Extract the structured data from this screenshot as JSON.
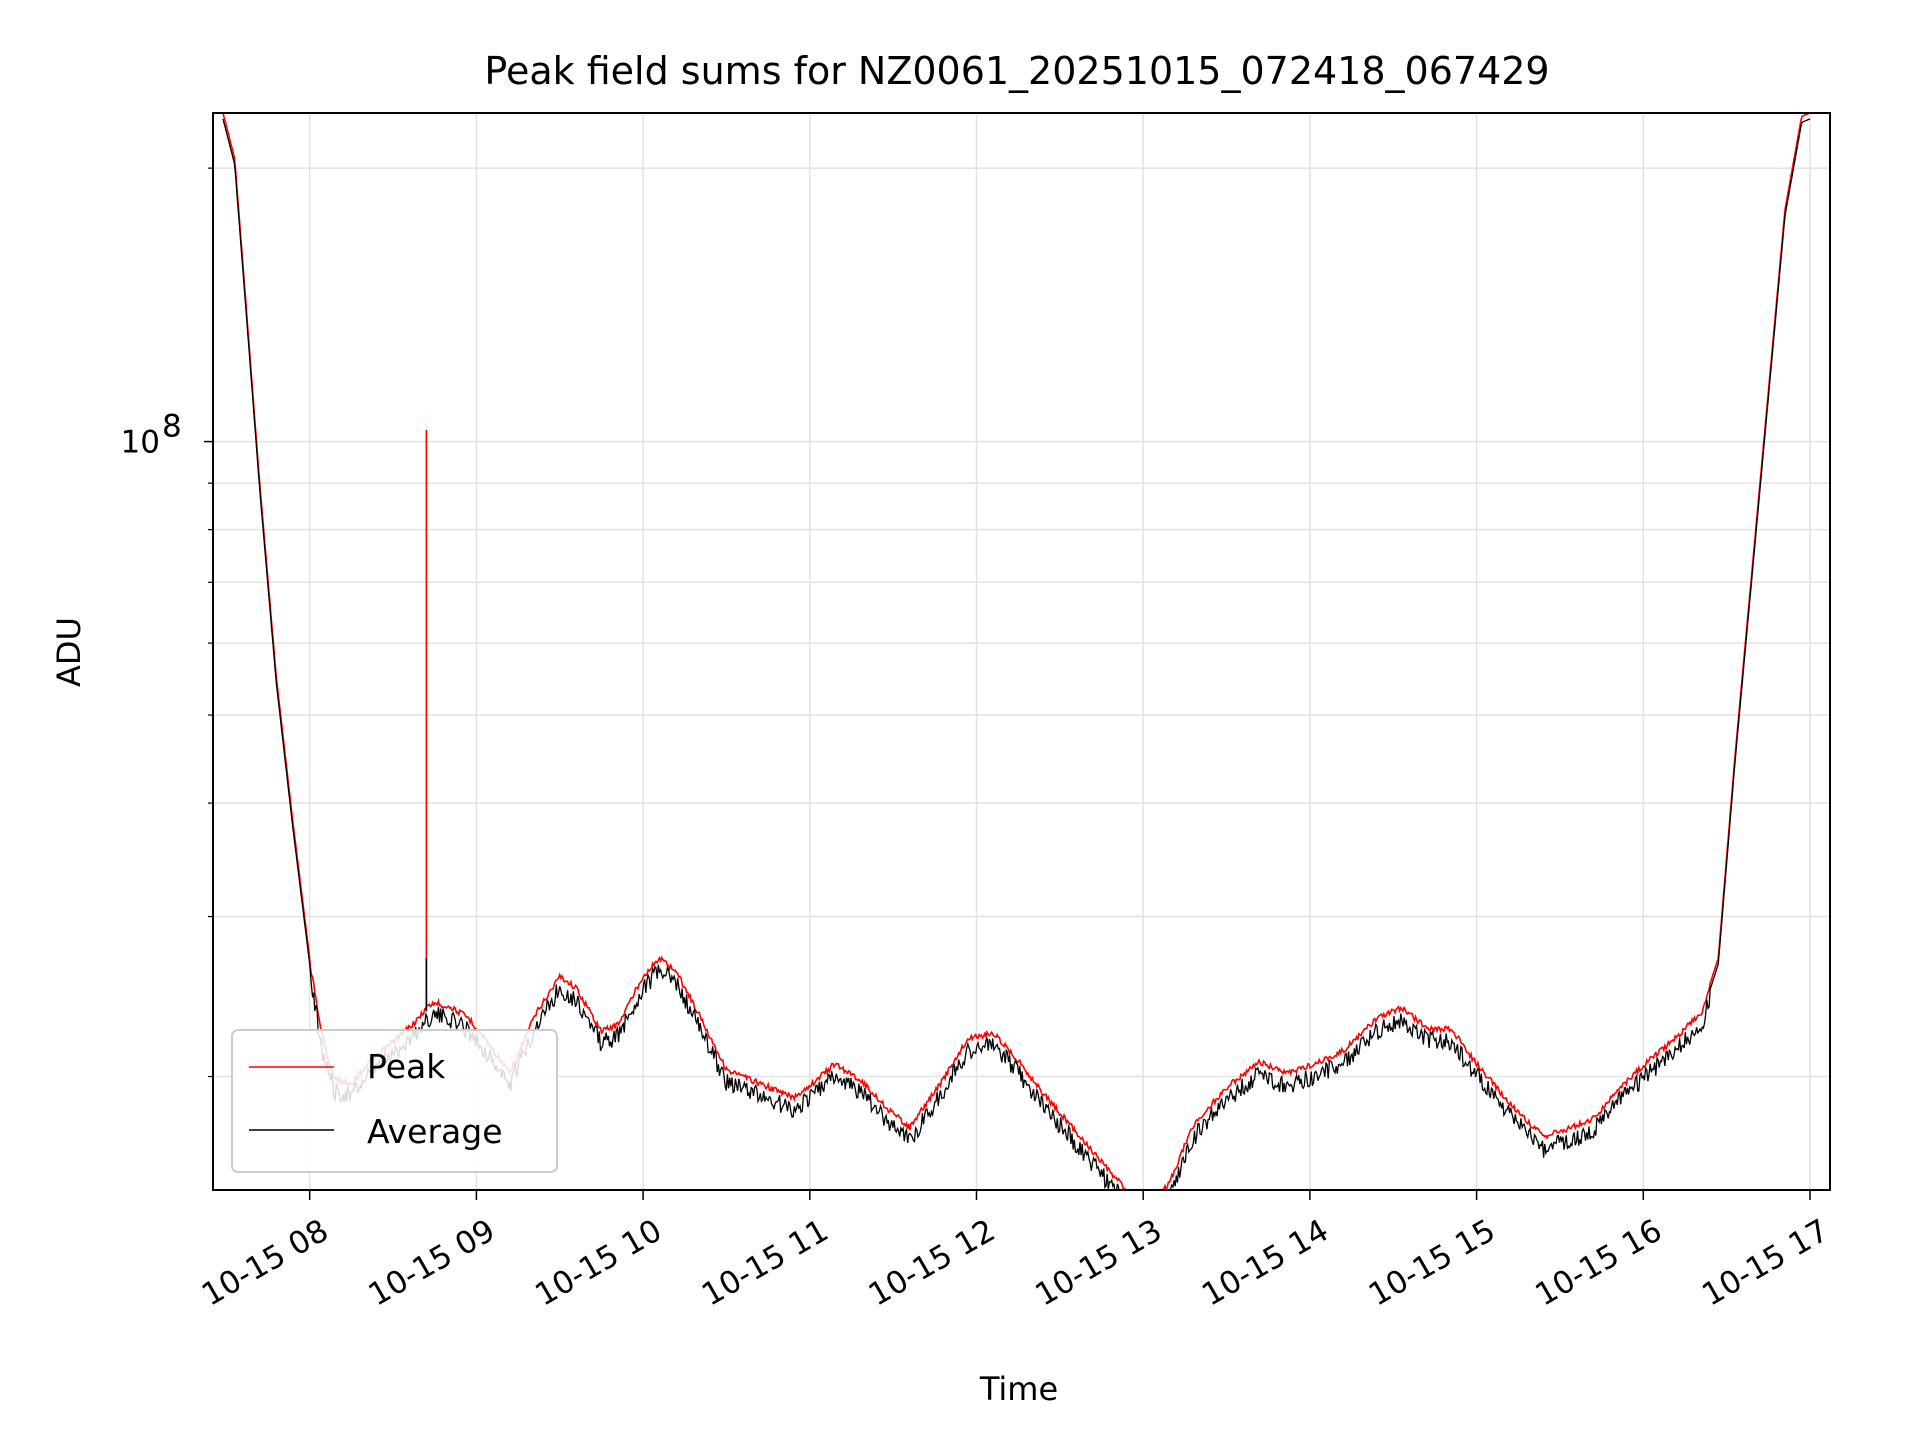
{
  "chart_data": {
    "type": "line",
    "title": "Peak field sums for NZ0061_20251015_072418_067429",
    "xlabel": "Time",
    "ylabel": "ADU",
    "yscale": "log",
    "ylim": [
      15000000,
      230000000
    ],
    "xlim": [
      7.42,
      17.12
    ],
    "x_unit": "hour of day 2025-10-15",
    "x_ticks": [
      8,
      9,
      10,
      11,
      12,
      13,
      14,
      15,
      16,
      17
    ],
    "x_tick_labels": [
      "10-15 08",
      "10-15 09",
      "10-15 10",
      "10-15 11",
      "10-15 12",
      "10-15 13",
      "10-15 14",
      "10-15 15",
      "10-15 16",
      "10-15 17"
    ],
    "y_major_ticks": [
      100000000
    ],
    "y_major_tick_labels": [
      {
        "base": "10",
        "exp": "8"
      }
    ],
    "y_minor_ticks": [
      20000000,
      30000000,
      40000000,
      50000000,
      60000000,
      70000000,
      80000000,
      90000000,
      200000000
    ],
    "grid": true,
    "legend_position": "lower-left",
    "series": [
      {
        "name": "Peak",
        "color": "#ff0000",
        "spike": {
          "x": 8.7,
          "y": 103000000
        }
      },
      {
        "name": "Average",
        "color": "#000000",
        "spike": {
          "x": 8.7,
          "y": 27000000
        }
      }
    ],
    "x": [
      7.48,
      7.55,
      7.62,
      7.7,
      7.8,
      7.9,
      8.0,
      8.08,
      8.15,
      8.25,
      8.35,
      8.5,
      8.65,
      8.7,
      8.75,
      8.85,
      8.95,
      9.05,
      9.2,
      9.35,
      9.5,
      9.6,
      9.75,
      9.85,
      10.0,
      10.1,
      10.2,
      10.35,
      10.5,
      10.7,
      10.9,
      11.0,
      11.15,
      11.3,
      11.45,
      11.6,
      11.8,
      11.95,
      12.1,
      12.25,
      12.4,
      12.6,
      12.8,
      12.95,
      13.05,
      13.15,
      13.3,
      13.5,
      13.7,
      13.85,
      14.0,
      14.2,
      14.4,
      14.55,
      14.7,
      14.85,
      15.0,
      15.2,
      15.4,
      15.6,
      15.7,
      15.85,
      16.0,
      16.2,
      16.35,
      16.45,
      16.55,
      16.7,
      16.85,
      16.95,
      17.0
    ],
    "values": [
      230000000,
      205000000,
      140000000,
      90000000,
      55000000,
      38000000,
      27000000,
      22000000,
      20000000,
      19800000,
      20800000,
      22000000,
      23300000,
      24000000,
      24300000,
      24000000,
      23400000,
      22200000,
      20300000,
      23500000,
      26000000,
      25200000,
      22600000,
      23000000,
      26000000,
      27200000,
      26300000,
      23300000,
      20500000,
      19800000,
      19100000,
      19700000,
      20800000,
      20000000,
      18700000,
      17700000,
      20000000,
      22200000,
      22500000,
      21000000,
      19300000,
      17500000,
      15800000,
      14800000,
      14600000,
      15300000,
      17800000,
      19600000,
      20900000,
      20300000,
      20700000,
      21500000,
      23300000,
      24000000,
      22800000,
      22700000,
      20800000,
      18800000,
      17300000,
      17800000,
      18100000,
      19500000,
      20700000,
      22300000,
      23700000,
      27000000,
      45000000,
      90000000,
      180000000,
      228000000,
      230000000
    ]
  },
  "legend": {
    "items": [
      "Peak",
      "Average"
    ]
  }
}
